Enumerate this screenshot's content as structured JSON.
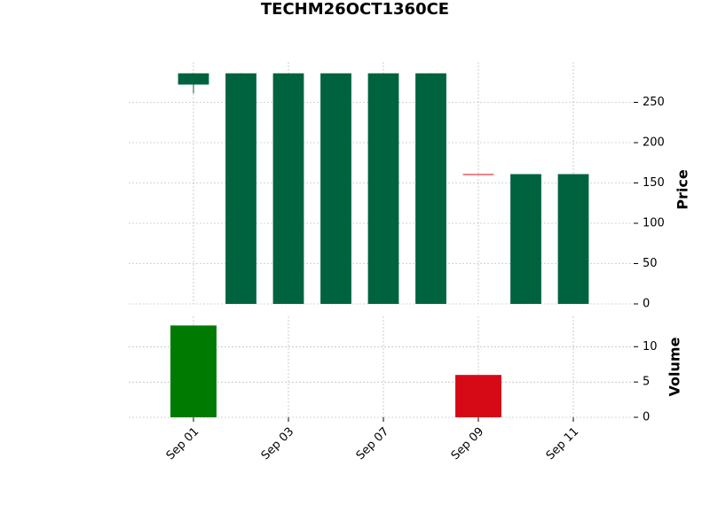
{
  "chart_data": {
    "type": "candlestick",
    "title": "TECHM26OCT1360CE",
    "categories": [
      "Sep 01",
      null,
      "Sep 03",
      null,
      "Sep 07",
      null,
      "Sep 09",
      null,
      "Sep 11"
    ],
    "open": [
      272,
      0,
      0,
      0,
      0,
      0,
      161,
      0,
      0
    ],
    "high": [
      286,
      286,
      286,
      286,
      286,
      286,
      161,
      161,
      161
    ],
    "low": [
      261,
      0,
      0,
      0,
      0,
      0,
      161,
      0,
      0
    ],
    "close": [
      286,
      286,
      286,
      286,
      286,
      286,
      161,
      161,
      161
    ],
    "volume": [
      13,
      0,
      0,
      0,
      0,
      0,
      6,
      0,
      0
    ],
    "up_color": "#006340",
    "down_color": "#d60a16",
    "volume_up_color": "#007a00",
    "volume_down_color": "#d60a16",
    "ylabel": "Price",
    "ylim": [
      0,
      300
    ],
    "yticks": [
      0,
      50,
      100,
      150,
      200,
      250
    ],
    "volume_label": "Volume",
    "volume_ylim": [
      0,
      14.3
    ],
    "volume_yticks": [
      0,
      5,
      10
    ],
    "grid": true
  }
}
